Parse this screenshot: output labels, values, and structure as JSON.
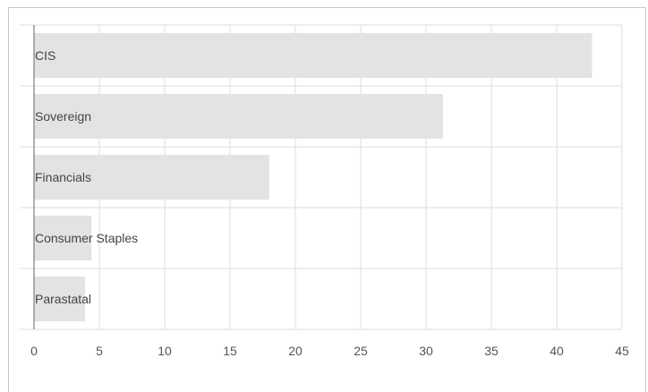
{
  "chart_data": {
    "type": "bar",
    "orientation": "horizontal",
    "categories": [
      "CIS",
      "Sovereign",
      "Financials",
      "Consumer Staples",
      "Parastatal"
    ],
    "values": [
      42.7,
      31.3,
      18.0,
      4.4,
      3.9
    ],
    "xlim": [
      0,
      45
    ],
    "xticks": [
      0,
      5,
      10,
      15,
      20,
      25,
      30,
      35,
      40,
      45
    ],
    "tick_labels": [
      "0",
      "5",
      "10",
      "15",
      "20",
      "25",
      "30",
      "35",
      "40",
      "45"
    ],
    "grid": true,
    "legend": "none",
    "bar_color": "#e3e3e3",
    "grid_color": "#dddddd",
    "axis_color": "#666666"
  }
}
